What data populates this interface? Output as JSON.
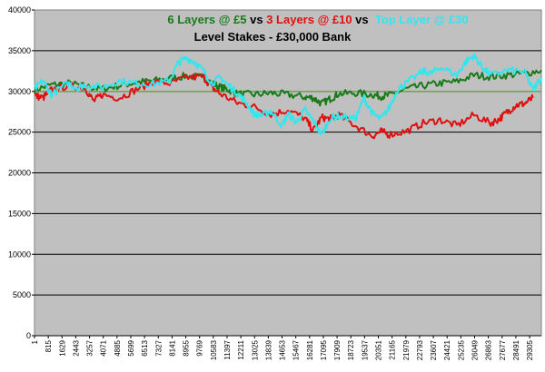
{
  "chart_data": {
    "type": "line",
    "title_parts": [
      {
        "text": "6 Layers @ £5",
        "color": "#1a7a1a"
      },
      {
        "text": " vs ",
        "color": "#000000"
      },
      {
        "text": "3 Layers @ £10",
        "color": "#e01010"
      },
      {
        "text": " vs  ",
        "color": "#000000"
      },
      {
        "text": "Top Layer @ £30",
        "color": "#33e6ee"
      }
    ],
    "subtitle": "Level Stakes - £30,000 Bank",
    "ylim": [
      0,
      40000
    ],
    "yticks": [
      0,
      5000,
      10000,
      15000,
      20000,
      25000,
      30000,
      35000,
      40000
    ],
    "xlim": [
      1,
      30000
    ],
    "xticks": [
      1,
      815,
      1629,
      2443,
      3257,
      4071,
      4885,
      5699,
      6513,
      7327,
      8141,
      8955,
      9769,
      10583,
      11397,
      12211,
      13025,
      13839,
      14653,
      15467,
      16281,
      17095,
      17909,
      18723,
      19537,
      20351,
      21165,
      21979,
      22793,
      23607,
      24421,
      25235,
      26049,
      26863,
      27677,
      28491,
      29305
    ],
    "reference_line": 30000,
    "grid": true,
    "plot_background": "#c0c0c0",
    "series": [
      {
        "color": "#1a7a1a",
        "x": [
          1,
          1000,
          2000,
          3000,
          4000,
          5000,
          6000,
          7000,
          8000,
          9000,
          10000,
          10500,
          11000,
          11500,
          12000,
          13000,
          14000,
          15000,
          16000,
          16500,
          17000,
          17500,
          18000,
          19000,
          20000,
          20500,
          21000,
          22000,
          23000,
          24000,
          25000,
          26000,
          27000,
          28000,
          29000,
          30000
        ],
        "y": [
          30200,
          30800,
          31000,
          30600,
          30300,
          30700,
          31100,
          31300,
          31600,
          31900,
          31700,
          31000,
          30500,
          30200,
          29700,
          29600,
          29800,
          29600,
          29300,
          29200,
          28500,
          29100,
          29700,
          29800,
          29600,
          29400,
          29500,
          30300,
          30700,
          31000,
          31200,
          32000,
          31800,
          32000,
          32200,
          32600
        ]
      },
      {
        "color": "#e01010",
        "x": [
          1,
          500,
          1000,
          2000,
          3000,
          3500,
          4000,
          5000,
          6000,
          7000,
          8000,
          9000,
          10000,
          10500,
          11000,
          12000,
          13000,
          14000,
          15000,
          16000,
          16500,
          17000,
          17500,
          18000,
          19000,
          20000,
          20500,
          21000,
          22000,
          23000,
          24000,
          25000,
          26000,
          27000,
          27500,
          28000,
          28500,
          29000,
          29500
        ],
        "y": [
          29500,
          29200,
          30200,
          30700,
          30400,
          28800,
          29600,
          29200,
          30200,
          31200,
          31000,
          31700,
          31800,
          30500,
          29700,
          28600,
          28100,
          27200,
          27700,
          26700,
          25200,
          26800,
          26600,
          27100,
          25800,
          24500,
          25100,
          24700,
          25100,
          26100,
          26500,
          25800,
          27100,
          26100,
          26600,
          27500,
          28300,
          28500,
          29200
        ]
      },
      {
        "color": "#33e6ee",
        "x": [
          1,
          500,
          1000,
          2000,
          2500,
          3000,
          4000,
          5000,
          6000,
          7000,
          8000,
          8500,
          9000,
          9500,
          10000,
          10500,
          11000,
          11500,
          12000,
          12500,
          13000,
          13500,
          14000,
          14653,
          15000,
          15500,
          16000,
          16500,
          17000,
          17500,
          18000,
          19000,
          19500,
          20000,
          20500,
          21000,
          21500,
          22000,
          23000,
          23500,
          24000,
          25000,
          25500,
          26000,
          26500,
          27000,
          28000,
          29000,
          29500,
          30000
        ],
        "y": [
          30300,
          31300,
          29600,
          31000,
          30400,
          30800,
          30500,
          31300,
          31000,
          30900,
          31300,
          33500,
          34100,
          33600,
          32500,
          31000,
          31700,
          30700,
          29800,
          28700,
          27200,
          27100,
          27600,
          25800,
          27200,
          26200,
          27700,
          26400,
          24700,
          26700,
          27000,
          26600,
          29200,
          27300,
          26600,
          28000,
          30300,
          31000,
          32500,
          32200,
          33000,
          32000,
          33600,
          34400,
          33000,
          32000,
          32600,
          32400,
          30200,
          31700
        ]
      }
    ]
  }
}
